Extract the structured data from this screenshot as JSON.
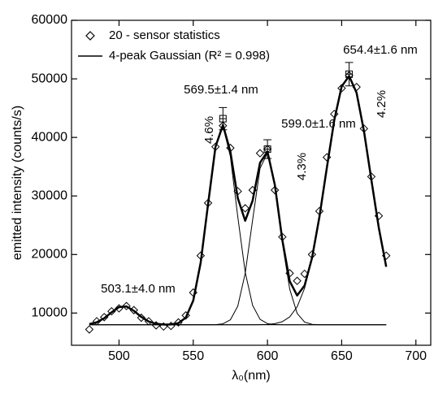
{
  "chart_data": {
    "type": "scatter",
    "xlabel": "λ₀(nm)",
    "ylabel": "emitted intensity (counts/s)",
    "xlim": [
      468,
      710
    ],
    "ylim": [
      4500,
      60000
    ],
    "xticks": [
      500,
      550,
      600,
      650,
      700
    ],
    "yticks": [
      10000,
      20000,
      30000,
      40000,
      50000,
      60000
    ],
    "x": [
      480,
      485,
      490,
      495,
      500,
      505,
      510,
      515,
      520,
      525,
      530,
      535,
      540,
      545,
      550,
      555,
      560,
      565,
      570,
      575,
      580,
      585,
      590,
      595,
      600,
      605,
      610,
      615,
      620,
      625,
      630,
      635,
      640,
      645,
      650,
      655,
      660,
      665,
      670,
      675,
      680
    ],
    "series": [
      {
        "name": "20 - sensor statistics",
        "style": "marker",
        "color": "#000000",
        "values": [
          7200,
          8600,
          9300,
          10300,
          10800,
          11200,
          10500,
          9200,
          8600,
          7900,
          7700,
          7800,
          8400,
          9600,
          13500,
          19800,
          28800,
          38400,
          42000,
          38200,
          30800,
          27900,
          31000,
          37300,
          38000,
          31000,
          23000,
          16800,
          15500,
          16700,
          20000,
          27400,
          36600,
          44000,
          48400,
          50600,
          48600,
          41500,
          33300,
          26600,
          19800
        ]
      },
      {
        "name": "4-peak Gaussian (R² = 0.998)",
        "style": "line",
        "width": 2.5,
        "color": "#000000",
        "values": [
          8120,
          8420,
          9110,
          10130,
          11020,
          11130,
          10390,
          9340,
          8550,
          8170,
          8040,
          8050,
          8280,
          9220,
          12130,
          18600,
          28620,
          38420,
          42110,
          37590,
          29640,
          25770,
          29210,
          35670,
          37580,
          31850,
          22510,
          15430,
          13000,
          14690,
          19390,
          26420,
          34810,
          42930,
          48720,
          50480,
          47650,
          41100,
          32740,
          24570,
          17910
        ]
      },
      {
        "style": "line",
        "width": 1,
        "color": "#000000",
        "values": [
          8120,
          8420,
          9110,
          10130,
          11020,
          11130,
          10390,
          9340,
          8550,
          8170,
          8040,
          8000,
          8000,
          8000,
          8000,
          8000,
          8000,
          8000,
          8000,
          8000,
          8000,
          8000,
          8000,
          8000,
          8000,
          8000,
          8000,
          8000,
          8000,
          8000,
          8000,
          8000,
          8000,
          8000,
          8000,
          8000,
          8000,
          8000,
          8000,
          8000,
          8000
        ]
      },
      {
        "style": "line",
        "width": 1,
        "color": "#000000",
        "values": [
          8000,
          8000,
          8000,
          8000,
          8000,
          8000,
          8000,
          8000,
          8000,
          8000,
          8000,
          8050,
          8280,
          9220,
          12130,
          18600,
          28620,
          38400,
          41950,
          36750,
          26460,
          16980,
          11320,
          8930,
          8200,
          8030,
          8000,
          8000,
          8000,
          8000,
          8000,
          8000,
          8000,
          8000,
          8000,
          8000,
          8000,
          8000,
          8000,
          8000,
          8000
        ]
      },
      {
        "style": "line",
        "width": 1,
        "color": "#000000",
        "values": [
          8000,
          8000,
          8000,
          8000,
          8000,
          8000,
          8000,
          8000,
          8000,
          8000,
          8000,
          8000,
          8000,
          8000,
          8000,
          8000,
          8000,
          8020,
          8160,
          8840,
          11180,
          16790,
          25890,
          34720,
          37320,
          31630,
          21980,
          14080,
          9940,
          8460,
          8080,
          8000,
          8000,
          8000,
          8000,
          8000,
          8000,
          8000,
          8000,
          8000,
          8000
        ]
      },
      {
        "style": "line",
        "width": 1,
        "color": "#000000",
        "values": [
          8000,
          8000,
          8000,
          8000,
          8000,
          8000,
          8000,
          8000,
          8000,
          8000,
          8000,
          8000,
          8000,
          8000,
          8000,
          8000,
          8000,
          8000,
          8000,
          8000,
          8000,
          8000,
          8000,
          8020,
          8060,
          8190,
          8530,
          9350,
          11060,
          14230,
          19310,
          26420,
          34810,
          42930,
          48720,
          50480,
          47650,
          41100,
          32740,
          24570,
          17910
        ]
      }
    ],
    "peaks": {
      "x": [
        570,
        600,
        655
      ],
      "y": [
        43200,
        38000,
        50800
      ],
      "errors": [
        1900,
        1600,
        2000
      ]
    },
    "annotations": [
      "503.1±4.0 nm",
      "569.5±1.4 nm",
      "599.0±1.6 nm",
      "654.4±1.6 nm",
      "4.6%",
      "4.3%",
      "4.2%"
    ]
  }
}
